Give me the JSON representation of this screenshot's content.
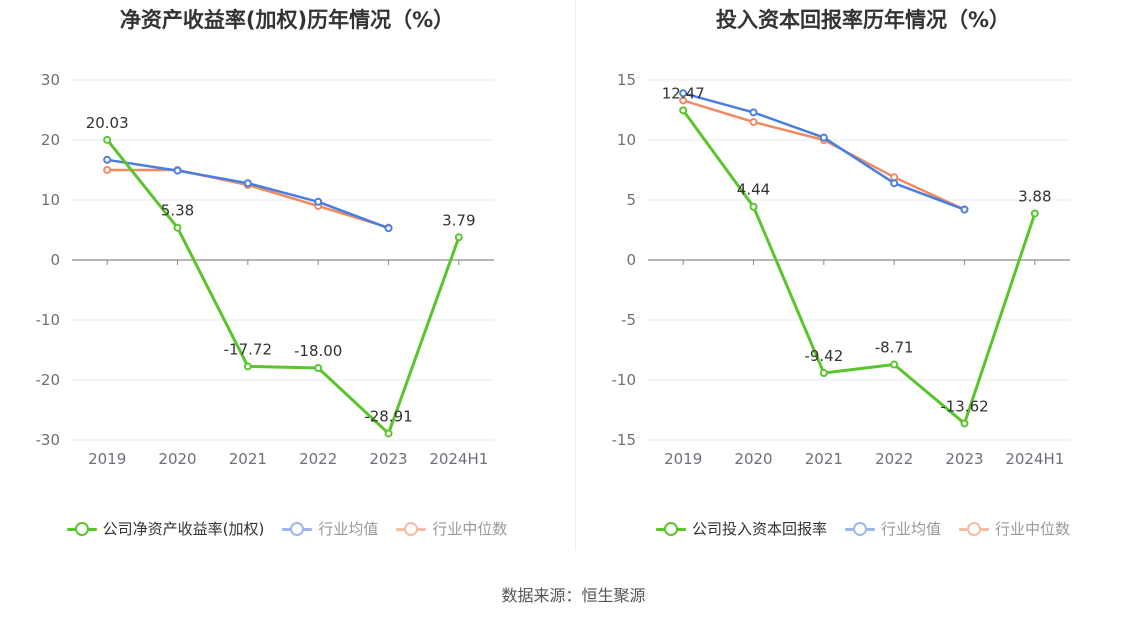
{
  "source": "数据来源：恒生聚源",
  "colors": {
    "company": "#5ac42c",
    "average": "#4a7ee0",
    "median": "#f08a62"
  },
  "chart_data": [
    {
      "type": "line",
      "title": "净资产收益率(加权)历年情况（%）",
      "categories": [
        "2019",
        "2020",
        "2021",
        "2022",
        "2023",
        "2024H1"
      ],
      "ylim": [
        -30,
        30
      ],
      "yticks": [
        30,
        20,
        10,
        0,
        -10,
        -20,
        -30
      ],
      "grid": true,
      "legend_position": "bottom",
      "series": [
        {
          "name": "公司净资产收益率(加权)",
          "color": "#5ac42c",
          "values": [
            20.03,
            5.38,
            -17.72,
            -18.0,
            -28.91,
            3.79
          ],
          "labels": [
            "20.03",
            "5.38",
            "-17.72",
            "-18.00",
            "-28.91",
            "3.79"
          ]
        },
        {
          "name": "行业均值",
          "color": "#4a7ee0",
          "values": [
            16.7,
            14.9,
            12.8,
            9.7,
            5.3,
            null
          ]
        },
        {
          "name": "行业中位数",
          "color": "#f08a62",
          "values": [
            15.0,
            15.0,
            12.5,
            9.0,
            5.4,
            null
          ]
        }
      ]
    },
    {
      "type": "line",
      "title": "投入资本回报率历年情况（%）",
      "categories": [
        "2019",
        "2020",
        "2021",
        "2022",
        "2023",
        "2024H1"
      ],
      "ylim": [
        -15,
        15
      ],
      "yticks": [
        15,
        10,
        5,
        0,
        -5,
        -10,
        -15
      ],
      "grid": true,
      "legend_position": "bottom",
      "series": [
        {
          "name": "公司投入资本回报率",
          "color": "#5ac42c",
          "values": [
            12.47,
            4.44,
            -9.42,
            -8.71,
            -13.62,
            3.88
          ],
          "labels": [
            "12.47",
            "4.44",
            "-9.42",
            "-8.71",
            "-13.62",
            "3.88"
          ]
        },
        {
          "name": "行业均值",
          "color": "#4a7ee0",
          "values": [
            13.9,
            12.3,
            10.2,
            6.4,
            4.2,
            null
          ]
        },
        {
          "name": "行业中位数",
          "color": "#f08a62",
          "values": [
            13.3,
            11.5,
            10.0,
            6.9,
            4.2,
            null
          ]
        }
      ]
    }
  ]
}
